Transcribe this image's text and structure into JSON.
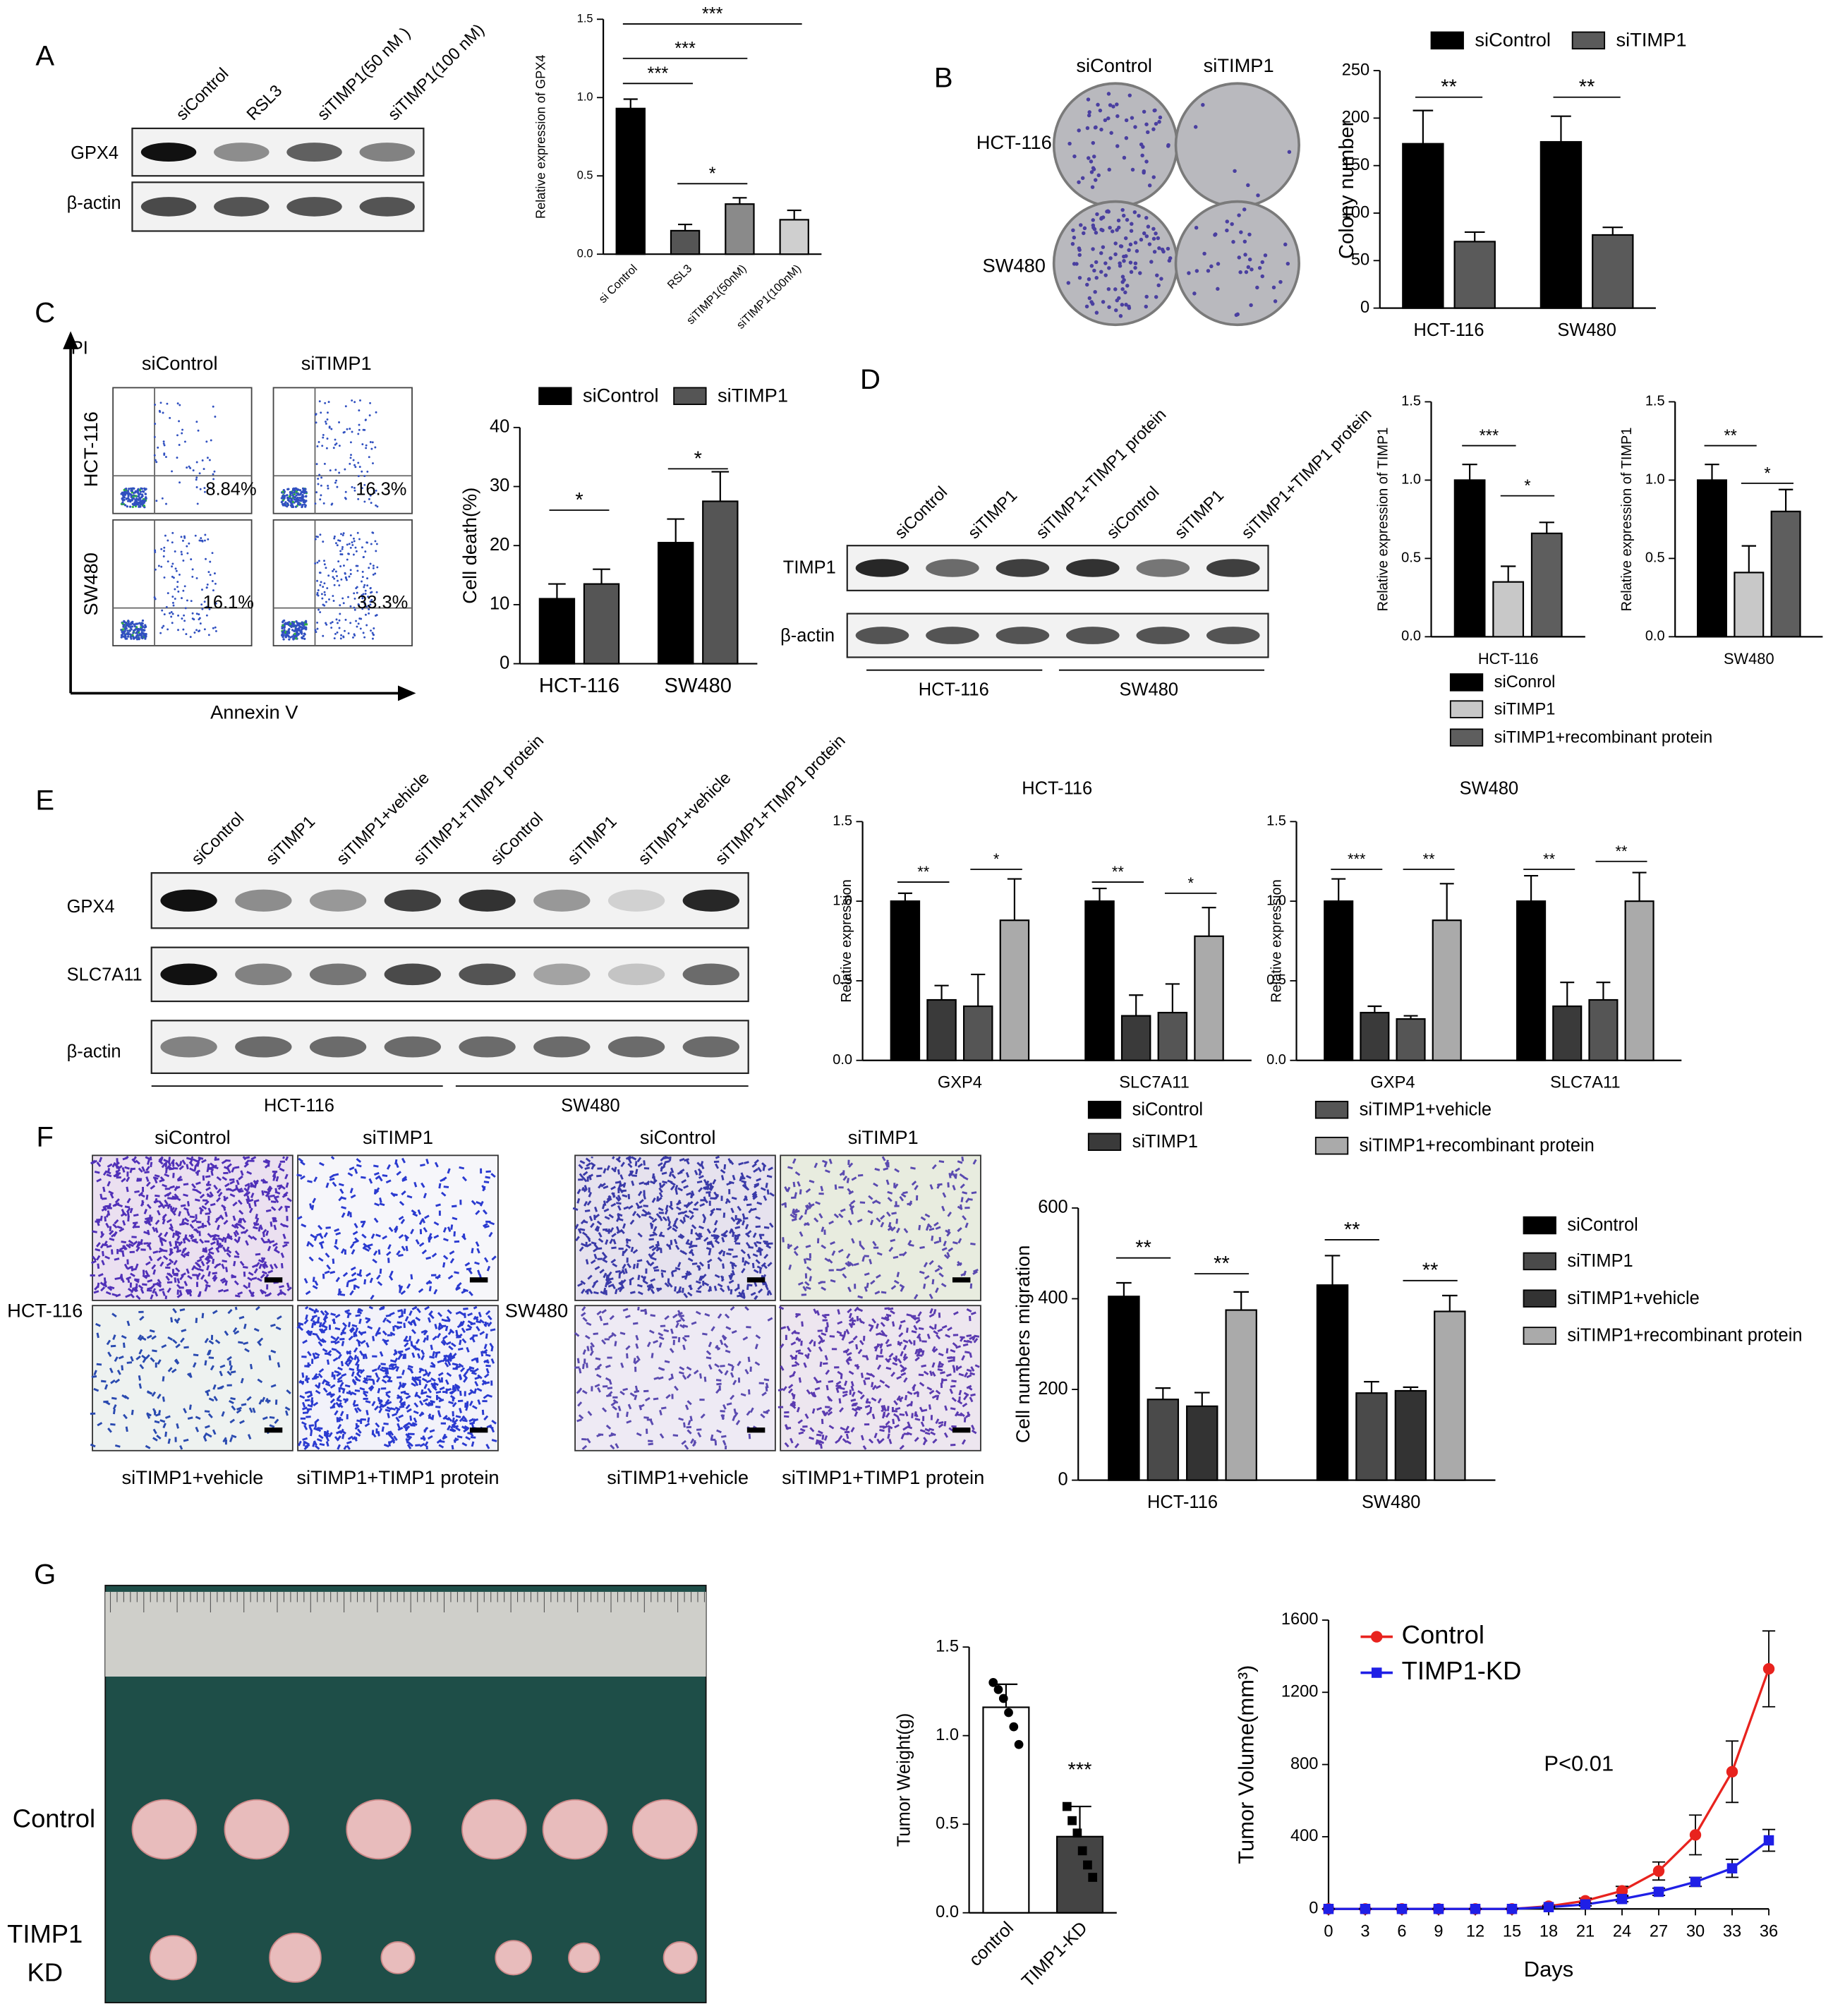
{
  "figure": {
    "panel_labels": [
      "A",
      "B",
      "C",
      "D",
      "E",
      "F",
      "G"
    ],
    "A": {
      "lanes": [
        "siControl",
        "RSL3",
        "siTIMP1(50 nM )",
        "siTIMP1(100 nM)"
      ],
      "rows": [
        "GPX4",
        "β-actin"
      ]
    },
    "B": {
      "columns": [
        "siControl",
        "siTIMP1"
      ],
      "rows": [
        "HCT-116",
        "SW480"
      ]
    },
    "C": {
      "columns": [
        "siControl",
        "siTIMP1"
      ],
      "rows": [
        "HCT-116",
        "SW480"
      ],
      "y_axis": "PI",
      "x_axis": "Annexin V",
      "percents": [
        "8.84%",
        "16.3%",
        "16.1%",
        "33.3%"
      ]
    },
    "D": {
      "lanes": [
        "siControl",
        "siTIMP1",
        "siTIMP1+TIMP1 protein",
        "siControl",
        "siTIMP1",
        "siTIMP1+TIMP1 protein"
      ],
      "rows": [
        "TIMP1",
        "β-actin"
      ],
      "groups": [
        "HCT-116",
        "SW480"
      ]
    },
    "E": {
      "lanes": [
        "siControl",
        "siTIMP1",
        "siTIMP1+vehicle",
        "siTIMP1+TIMP1 protein",
        "siControl",
        "siTIMP1",
        "siTIMP1+vehicle",
        "siTIMP1+TIMP1 protein"
      ],
      "rows": [
        "GPX4",
        "SLC7A11",
        "β-actin"
      ],
      "groups": [
        "HCT-116",
        "SW480"
      ]
    },
    "F": {
      "panels": [
        {
          "row": "HCT-116",
          "top": [
            "siControl",
            "siTIMP1"
          ],
          "bottom": [
            "siTIMP1+vehicle",
            "siTIMP1+TIMP1 protein"
          ]
        },
        {
          "row": "SW480",
          "top": [
            "siControl",
            "siTIMP1"
          ],
          "bottom": [
            "siTIMP1+vehicle",
            "siTIMP1+TIMP1 protein"
          ]
        }
      ]
    },
    "G": {
      "control": "Control",
      "kd": [
        "TIMP1",
        "KD"
      ]
    }
  },
  "chart_data": [
    {
      "type": "bar",
      "y_label": "Relative expression of GPX4",
      "categories": [
        "si Control",
        "RSL3",
        "siTIMP1(50nM)",
        "siTIMP1(100nM)"
      ],
      "values": [
        0.93,
        0.15,
        0.32,
        0.22
      ],
      "errors": [
        0.06,
        0.04,
        0.04,
        0.06
      ],
      "colors": [
        "#000000",
        "#555555",
        "#8a8a8a",
        "#cfcfcf"
      ],
      "ylim": [
        0,
        1.5
      ],
      "yticks": [
        {
          "value": 0,
          "label": "0.0"
        },
        0.5,
        {
          "value": 1,
          "label": "1.0"
        },
        1.5
      ],
      "annotations": [
        "***",
        "***",
        "***",
        "*"
      ]
    },
    {
      "type": "bar",
      "y_label": "Colony number",
      "categories": [
        "HCT-116",
        "SW480"
      ],
      "series": [
        {
          "name": "siControl",
          "color": "#000000",
          "values": [
            173,
            175
          ],
          "errors": [
            35,
            27
          ]
        },
        {
          "name": "siTIMP1",
          "color": "#5a5a5a",
          "values": [
            70,
            77
          ],
          "errors": [
            10,
            8
          ]
        }
      ],
      "ylim": [
        0,
        250
      ],
      "yticks": [
        0,
        50,
        100,
        150,
        200,
        250
      ],
      "annotations": [
        "**",
        "**"
      ]
    },
    {
      "type": "bar",
      "y_label": "Cell death(%)",
      "categories": [
        "HCT-116",
        "SW480"
      ],
      "series": [
        {
          "name": "siControl",
          "color": "#000000",
          "values": [
            11,
            20.5
          ],
          "errors": [
            2.5,
            4
          ]
        },
        {
          "name": "siTIMP1",
          "color": "#555555",
          "values": [
            13.5,
            27.5
          ],
          "errors": [
            2.5,
            5
          ]
        }
      ],
      "ylim": [
        0,
        40
      ],
      "yticks": [
        0,
        10,
        20,
        30,
        40
      ],
      "annotations": [
        "*",
        "*"
      ]
    },
    {
      "type": "bar",
      "y_label": "Relative expression of TIMP1",
      "categories": [
        "HCT-116"
      ],
      "series": [
        {
          "name": "siConrol",
          "color": "#000000",
          "values": [
            1
          ],
          "errors": [
            0.1
          ]
        },
        {
          "name": "siTIMP1",
          "color": "#c8c8c8",
          "values": [
            0.35
          ],
          "errors": [
            0.1
          ]
        },
        {
          "name": "siTIMP1+recombinant protein",
          "color": "#5e5e5e",
          "values": [
            0.66
          ],
          "errors": [
            0.07
          ]
        }
      ],
      "ylim": [
        0,
        1.5
      ],
      "yticks": [
        {
          "value": 0,
          "label": "0.0"
        },
        0.5,
        {
          "value": 1,
          "label": "1.0"
        },
        1.5
      ],
      "annotations": [
        "***",
        "*"
      ]
    },
    {
      "type": "bar",
      "y_label": "Relative expression of TIMP1",
      "categories": [
        "SW480"
      ],
      "series": [
        {
          "color": "#000000",
          "values": [
            1
          ],
          "errors": [
            0.1
          ]
        },
        {
          "color": "#c8c8c8",
          "values": [
            0.41
          ],
          "errors": [
            0.17
          ]
        },
        {
          "color": "#5e5e5e",
          "values": [
            0.8
          ],
          "errors": [
            0.14
          ]
        }
      ],
      "ylim": [
        0,
        1.5
      ],
      "yticks": [
        {
          "value": 0,
          "label": "0.0"
        },
        0.5,
        {
          "value": 1,
          "label": "1.0"
        },
        1.5
      ],
      "annotations": [
        "**",
        "*"
      ]
    },
    {
      "type": "bar",
      "title": "HCT-116",
      "y_label": "Relative expression",
      "categories": [
        "GXP4",
        "SLC7A11"
      ],
      "series": [
        {
          "name": "siControl",
          "color": "#000000",
          "values": [
            1,
            1
          ],
          "errors": [
            0.05,
            0.08
          ]
        },
        {
          "name": "siTIMP1",
          "color": "#3a3a3a",
          "values": [
            0.38,
            0.28
          ],
          "errors": [
            0.09,
            0.13
          ]
        },
        {
          "name": "siTIMP1+vehicle",
          "color": "#555555",
          "values": [
            0.34,
            0.3
          ],
          "errors": [
            0.2,
            0.18
          ]
        },
        {
          "name": "siTIMP1+recombinant protein",
          "color": "#aaaaaa",
          "values": [
            0.88,
            0.78
          ],
          "errors": [
            0.26,
            0.18
          ]
        }
      ],
      "ylim": [
        0,
        1.5
      ],
      "yticks": [
        {
          "value": 0,
          "label": "0.0"
        },
        0.5,
        {
          "value": 1,
          "label": "1.0"
        },
        1.5
      ],
      "annotations": [
        "**",
        "*",
        "**",
        "*"
      ]
    },
    {
      "type": "bar",
      "title": "SW480",
      "y_label": "Relative expression",
      "categories": [
        "GXP4",
        "SLC7A11"
      ],
      "series": [
        {
          "color": "#000000",
          "values": [
            1,
            1
          ],
          "errors": [
            0.14,
            0.16
          ]
        },
        {
          "color": "#3a3a3a",
          "values": [
            0.3,
            0.34
          ],
          "errors": [
            0.04,
            0.15
          ]
        },
        {
          "color": "#555555",
          "values": [
            0.26,
            0.38
          ],
          "errors": [
            0.02,
            0.11
          ]
        },
        {
          "color": "#aaaaaa",
          "values": [
            0.88,
            1
          ],
          "errors": [
            0.23,
            0.18
          ]
        }
      ],
      "ylim": [
        0,
        1.5
      ],
      "yticks": [
        {
          "value": 0,
          "label": "0.0"
        },
        0.5,
        {
          "value": 1,
          "label": "1.0"
        },
        1.5
      ],
      "annotations": [
        "***",
        "**",
        "**",
        "**"
      ]
    },
    {
      "type": "bar",
      "y_label": "Cell numbers migration",
      "categories": [
        "HCT-116",
        "SW480"
      ],
      "series": [
        {
          "name": "siControl",
          "color": "#000000",
          "values": [
            405,
            430
          ],
          "errors": [
            30,
            65
          ]
        },
        {
          "name": "siTIMP1",
          "color": "#4a4a4a",
          "values": [
            178,
            192
          ],
          "errors": [
            25,
            25
          ]
        },
        {
          "name": "siTIMP1+vehicle",
          "color": "#333333",
          "values": [
            163,
            197
          ],
          "errors": [
            30,
            8
          ]
        },
        {
          "name": "siTIMP1+recombinant protein",
          "color": "#aaaaaa",
          "values": [
            375,
            372
          ],
          "errors": [
            40,
            35
          ]
        }
      ],
      "ylim": [
        0,
        600
      ],
      "yticks": [
        0,
        200,
        400,
        600
      ],
      "annotations": [
        "**",
        "**",
        "**",
        "**"
      ]
    },
    {
      "type": "bar",
      "y_label": "Tumor Weight(g)",
      "categories": [
        "control",
        "TIMP1-KD"
      ],
      "values": [
        1.16,
        0.43
      ],
      "errors": [
        0.13,
        0.17
      ],
      "colors": [
        "#ffffff",
        "#444444"
      ],
      "points": [
        [
          1.3,
          1.26,
          1.21,
          1.13,
          1.05,
          0.95
        ],
        [
          0.6,
          0.52,
          0.45,
          0.35,
          0.27,
          0.2
        ]
      ],
      "ylim": [
        0,
        1.5
      ],
      "yticks": [
        {
          "value": 0,
          "label": "0.0"
        },
        0.5,
        {
          "value": 1,
          "label": "1.0"
        },
        1.5
      ],
      "annotations": [
        "***"
      ]
    },
    {
      "type": "line",
      "x_label": "Days",
      "y_label": "Tumor Volume(mm³)",
      "x": [
        0,
        3,
        6,
        9,
        12,
        15,
        18,
        21,
        24,
        27,
        30,
        33,
        36
      ],
      "xlim": [
        0,
        36
      ],
      "xticks": [
        0,
        3,
        6,
        9,
        12,
        15,
        18,
        21,
        24,
        27,
        30,
        33,
        36
      ],
      "series": [
        {
          "name": "Control",
          "color": "#e8231e",
          "marker": "circle",
          "values": [
            0,
            0,
            0,
            0,
            0,
            0,
            15,
            45,
            100,
            210,
            410,
            760,
            1330
          ],
          "errors": [
            0,
            0,
            0,
            0,
            0,
            0,
            5,
            15,
            25,
            50,
            110,
            170,
            210
          ]
        },
        {
          "name": "TIMP1-KD",
          "color": "#1f1fe6",
          "marker": "square",
          "values": [
            0,
            0,
            0,
            0,
            0,
            0,
            10,
            25,
            55,
            95,
            150,
            225,
            380
          ],
          "errors": [
            0,
            0,
            0,
            0,
            0,
            0,
            3,
            8,
            15,
            20,
            25,
            50,
            60
          ]
        }
      ],
      "ylim": [
        0,
        1600
      ],
      "yticks": [
        0,
        400,
        800,
        1200,
        1600
      ],
      "annotations": [
        "P<0.01"
      ]
    }
  ]
}
